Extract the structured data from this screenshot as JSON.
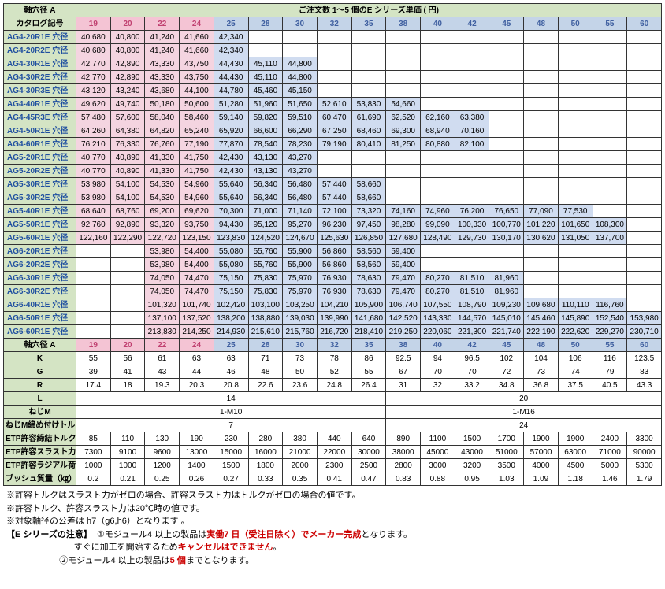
{
  "header": {
    "shaft_label": "軸穴径 A",
    "catalog_label": "カタログ記号",
    "price_title": "ご注文数 1～5 個のE シリーズ単価 ( 円)"
  },
  "diameters": [
    "19",
    "20",
    "22",
    "24",
    "25",
    "28",
    "30",
    "32",
    "35",
    "38",
    "40",
    "42",
    "45",
    "48",
    "50",
    "55",
    "60"
  ],
  "split_idx": 4,
  "price_rows": [
    {
      "c": "AG4-20R1E 穴径",
      "v": [
        "40,680",
        "40,800",
        "41,240",
        "41,660",
        "42,340",
        "",
        "",
        "",
        "",
        "",
        "",
        "",
        "",
        "",
        "",
        "",
        ""
      ],
      "e": 5
    },
    {
      "c": "AG4-20R2E 穴径",
      "v": [
        "40,680",
        "40,800",
        "41,240",
        "41,660",
        "42,340",
        "",
        "",
        "",
        "",
        "",
        "",
        "",
        "",
        "",
        "",
        "",
        ""
      ],
      "e": 5
    },
    {
      "c": "AG4-30R1E 穴径",
      "v": [
        "42,770",
        "42,890",
        "43,330",
        "43,750",
        "44,430",
        "45,110",
        "44,800",
        "",
        "",
        "",
        "",
        "",
        "",
        "",
        "",
        "",
        ""
      ],
      "e": 7
    },
    {
      "c": "AG4-30R2E 穴径",
      "v": [
        "42,770",
        "42,890",
        "43,330",
        "43,750",
        "44,430",
        "45,110",
        "44,800",
        "",
        "",
        "",
        "",
        "",
        "",
        "",
        "",
        "",
        ""
      ],
      "e": 7
    },
    {
      "c": "AG4-30R3E 穴径",
      "v": [
        "43,120",
        "43,240",
        "43,680",
        "44,100",
        "44,780",
        "45,460",
        "45,150",
        "",
        "",
        "",
        "",
        "",
        "",
        "",
        "",
        "",
        ""
      ],
      "e": 7
    },
    {
      "c": "AG4-40R1E 穴径",
      "v": [
        "49,620",
        "49,740",
        "50,180",
        "50,600",
        "51,280",
        "51,960",
        "51,650",
        "52,610",
        "53,830",
        "54,660",
        "",
        "",
        "",
        "",
        "",
        "",
        ""
      ],
      "e": 10
    },
    {
      "c": "AG4-45R3E 穴径",
      "v": [
        "57,480",
        "57,600",
        "58,040",
        "58,460",
        "59,140",
        "59,820",
        "59,510",
        "60,470",
        "61,690",
        "62,520",
        "62,160",
        "63,380",
        "",
        "",
        "",
        "",
        ""
      ],
      "e": 12
    },
    {
      "c": "AG4-50R1E 穴径",
      "v": [
        "64,260",
        "64,380",
        "64,820",
        "65,240",
        "65,920",
        "66,600",
        "66,290",
        "67,250",
        "68,460",
        "69,300",
        "68,940",
        "70,160",
        "",
        "",
        "",
        "",
        ""
      ],
      "e": 12
    },
    {
      "c": "AG4-60R1E 穴径",
      "v": [
        "76,210",
        "76,330",
        "76,760",
        "77,190",
        "77,870",
        "78,540",
        "78,230",
        "79,190",
        "80,410",
        "81,250",
        "80,880",
        "82,100",
        "",
        "",
        "",
        "",
        ""
      ],
      "e": 12
    },
    {
      "c": "AG5-20R1E 穴径",
      "v": [
        "40,770",
        "40,890",
        "41,330",
        "41,750",
        "42,430",
        "43,130",
        "43,270",
        "",
        "",
        "",
        "",
        "",
        "",
        "",
        "",
        "",
        ""
      ],
      "e": 7
    },
    {
      "c": "AG5-20R2E 穴径",
      "v": [
        "40,770",
        "40,890",
        "41,330",
        "41,750",
        "42,430",
        "43,130",
        "43,270",
        "",
        "",
        "",
        "",
        "",
        "",
        "",
        "",
        "",
        ""
      ],
      "e": 7
    },
    {
      "c": "AG5-30R1E 穴径",
      "v": [
        "53,980",
        "54,100",
        "54,530",
        "54,960",
        "55,640",
        "56,340",
        "56,480",
        "57,440",
        "58,660",
        "",
        "",
        "",
        "",
        "",
        "",
        "",
        ""
      ],
      "e": 9
    },
    {
      "c": "AG5-30R2E 穴径",
      "v": [
        "53,980",
        "54,100",
        "54,530",
        "54,960",
        "55,640",
        "56,340",
        "56,480",
        "57,440",
        "58,660",
        "",
        "",
        "",
        "",
        "",
        "",
        "",
        ""
      ],
      "e": 9
    },
    {
      "c": "AG5-40R1E 穴径",
      "v": [
        "68,640",
        "68,760",
        "69,200",
        "69,620",
        "70,300",
        "71,000",
        "71,140",
        "72,100",
        "73,320",
        "74,160",
        "74,960",
        "76,200",
        "76,650",
        "77,090",
        "77,530",
        "",
        ""
      ],
      "e": 15
    },
    {
      "c": "AG5-50R1E 穴径",
      "v": [
        "92,760",
        "92,890",
        "93,320",
        "93,750",
        "94,430",
        "95,120",
        "95,270",
        "96,230",
        "97,450",
        "98,280",
        "99,090",
        "100,330",
        "100,770",
        "101,220",
        "101,650",
        "108,300",
        ""
      ],
      "e": 16
    },
    {
      "c": "AG5-60R1E 穴径",
      "v": [
        "122,160",
        "122,290",
        "122,720",
        "123,150",
        "123,830",
        "124,520",
        "124,670",
        "125,630",
        "126,850",
        "127,680",
        "128,490",
        "129,730",
        "130,170",
        "130,620",
        "131,050",
        "137,700",
        ""
      ],
      "e": 16
    },
    {
      "c": "AG6-20R1E 穴径",
      "v": [
        "",
        "",
        "53,980",
        "54,400",
        "55,080",
        "55,760",
        "55,900",
        "56,860",
        "58,560",
        "59,400",
        "",
        "",
        "",
        "",
        "",
        "",
        ""
      ],
      "e": 10,
      "s": 2
    },
    {
      "c": "AG6-20R2E 穴径",
      "v": [
        "",
        "",
        "53,980",
        "54,400",
        "55,080",
        "55,760",
        "55,900",
        "56,860",
        "58,560",
        "59,400",
        "",
        "",
        "",
        "",
        "",
        "",
        ""
      ],
      "e": 10,
      "s": 2
    },
    {
      "c": "AG6-30R1E 穴径",
      "v": [
        "",
        "",
        "74,050",
        "74,470",
        "75,150",
        "75,830",
        "75,970",
        "76,930",
        "78,630",
        "79,470",
        "80,270",
        "81,510",
        "81,960",
        "",
        "",
        "",
        ""
      ],
      "e": 13,
      "s": 2
    },
    {
      "c": "AG6-30R2E 穴径",
      "v": [
        "",
        "",
        "74,050",
        "74,470",
        "75,150",
        "75,830",
        "75,970",
        "76,930",
        "78,630",
        "79,470",
        "80,270",
        "81,510",
        "81,960",
        "",
        "",
        "",
        ""
      ],
      "e": 13,
      "s": 2
    },
    {
      "c": "AG6-40R1E 穴径",
      "v": [
        "",
        "",
        "101,320",
        "101,740",
        "102,420",
        "103,100",
        "103,250",
        "104,210",
        "105,900",
        "106,740",
        "107,550",
        "108,790",
        "109,230",
        "109,680",
        "110,110",
        "116,760",
        ""
      ],
      "e": 16,
      "s": 2
    },
    {
      "c": "AG6-50R1E 穴径",
      "v": [
        "",
        "",
        "137,100",
        "137,520",
        "138,200",
        "138,880",
        "139,030",
        "139,990",
        "141,680",
        "142,520",
        "143,330",
        "144,570",
        "145,010",
        "145,460",
        "145,890",
        "152,540",
        "153,980"
      ],
      "e": 17,
      "s": 2
    },
    {
      "c": "AG6-60R1E 穴径",
      "v": [
        "",
        "",
        "213,830",
        "214,250",
        "214,930",
        "215,610",
        "215,760",
        "216,720",
        "218,410",
        "219,250",
        "220,060",
        "221,300",
        "221,740",
        "222,190",
        "222,620",
        "229,270",
        "230,710"
      ],
      "e": 17,
      "s": 2
    }
  ],
  "spec_rows": [
    {
      "l": "K",
      "v": [
        "55",
        "56",
        "61",
        "63",
        "63",
        "71",
        "73",
        "78",
        "86",
        "92.5",
        "94",
        "96.5",
        "102",
        "104",
        "106",
        "116",
        "123.5"
      ]
    },
    {
      "l": "G",
      "v": [
        "39",
        "41",
        "43",
        "44",
        "46",
        "48",
        "50",
        "52",
        "55",
        "67",
        "70",
        "70",
        "72",
        "73",
        "74",
        "79",
        "83"
      ]
    },
    {
      "l": "R",
      "v": [
        "17.4",
        "18",
        "19.3",
        "20.3",
        "20.8",
        "22.6",
        "23.6",
        "24.8",
        "26.4",
        "31",
        "32",
        "33.2",
        "34.8",
        "36.8",
        "37.5",
        "40.5",
        "43.3"
      ]
    },
    {
      "l": "L",
      "merge": [
        {
          "span": 9,
          "v": "14"
        },
        {
          "span": 8,
          "v": "20"
        }
      ]
    },
    {
      "l": "ねじM",
      "merge": [
        {
          "span": 9,
          "v": "1-M10"
        },
        {
          "span": 8,
          "v": "1-M16"
        }
      ]
    },
    {
      "l": "ねじM締め付けトルク N・m",
      "merge": [
        {
          "span": 9,
          "v": "7"
        },
        {
          "span": 8,
          "v": "24"
        }
      ]
    },
    {
      "l": "ETP許容締結トルク N・m",
      "v": [
        "85",
        "110",
        "130",
        "190",
        "230",
        "280",
        "380",
        "440",
        "640",
        "890",
        "1100",
        "1500",
        "1700",
        "1900",
        "1900",
        "2400",
        "3300"
      ]
    },
    {
      "l": "ETP許容スラスト力 N",
      "v": [
        "7300",
        "9100",
        "9600",
        "13000",
        "15000",
        "16000",
        "21000",
        "22000",
        "30000",
        "38000",
        "45000",
        "43000",
        "51000",
        "57000",
        "63000",
        "71000",
        "90000"
      ]
    },
    {
      "l": "ETP許容ラジアル荷重 N",
      "v": [
        "1000",
        "1000",
        "1200",
        "1400",
        "1500",
        "1800",
        "2000",
        "2300",
        "2500",
        "2800",
        "3000",
        "3200",
        "3500",
        "4000",
        "4500",
        "5000",
        "5300"
      ]
    },
    {
      "l": "ブッシュ質量（㎏）",
      "v": [
        "0.2",
        "0.21",
        "0.25",
        "0.26",
        "0.27",
        "0.33",
        "0.35",
        "0.41",
        "0.47",
        "0.83",
        "0.88",
        "0.95",
        "1.03",
        "1.09",
        "1.18",
        "1.46",
        "1.79"
      ]
    }
  ],
  "notes": {
    "n1": "※許容トルクはスラスト力がゼロの場合、許容スラスト力はトルクがゼロの場合の値です。",
    "n2": "※許容トルク、許容スラスト力は20℃時の値です。",
    "n3": "※対象軸径の公差は h7（g6,h6）となります 。",
    "series_label": "【E シリーズの注意】",
    "s1a": "①モジュール4 以上の製品は",
    "s1b": "実働7 日（受注日除く）でメーカー完成",
    "s1c": "となります。",
    "s2a": "すぐに加工を開始するため",
    "s2b": "キャンセルはできません",
    "s2c": "。",
    "s3a": "②モジュール4 以上の製品は",
    "s3b": "5 個",
    "s3c": "までとなります。"
  }
}
